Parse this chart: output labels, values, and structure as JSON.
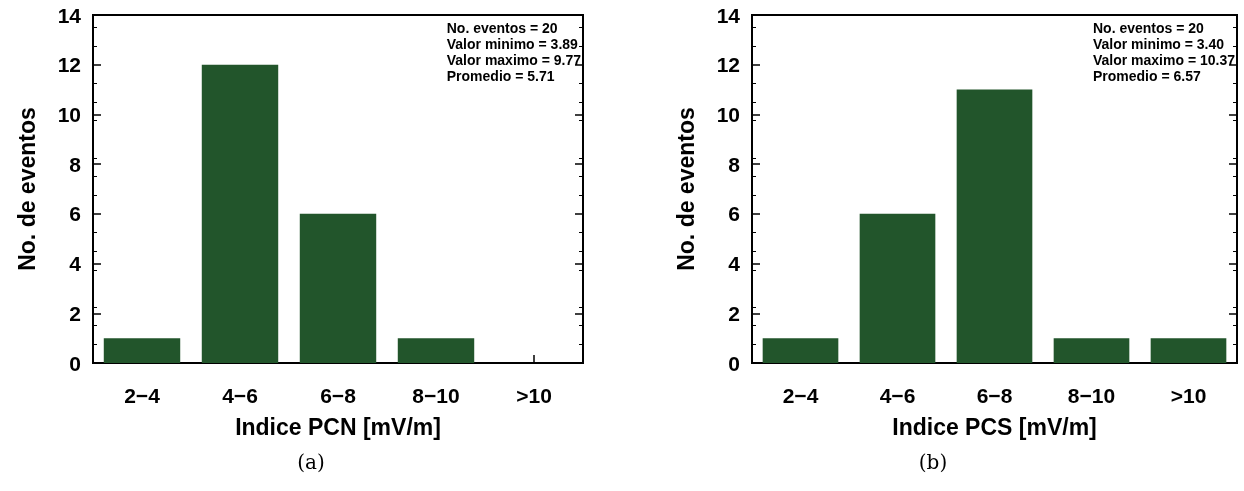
{
  "chart_data": [
    {
      "type": "bar",
      "xlabel": "Indice PCN [mV/m]",
      "ylabel": "No. de eventos",
      "categories": [
        "2−4",
        "4−6",
        "6−8",
        "8−10",
        ">10"
      ],
      "values": [
        1,
        12,
        6,
        1,
        0
      ],
      "color": "#22552b",
      "ylim": [
        0,
        14
      ],
      "yticks": [
        0,
        2,
        4,
        6,
        8,
        10,
        12,
        14
      ],
      "annotations": [
        "No. eventos = 20",
        "Valor minimo = 3.89",
        "Valor maximo = 9.77",
        "Promedio = 5.71",
        "(a)"
      ]
    },
    {
      "type": "bar",
      "xlabel": "Indice PCS [mV/m]",
      "ylabel": "No. de eventos",
      "categories": [
        "2−4",
        "4−6",
        "6−8",
        "8−10",
        ">10"
      ],
      "values": [
        1,
        6,
        11,
        1,
        1
      ],
      "color": "#22552b",
      "ylim": [
        0,
        14
      ],
      "yticks": [
        0,
        2,
        4,
        6,
        8,
        10,
        12,
        14
      ],
      "annotations": [
        "No. eventos = 20",
        "Valor minimo = 3.40",
        "Valor maximo = 10.37",
        "Promedio = 6.57",
        "(b)"
      ]
    }
  ]
}
